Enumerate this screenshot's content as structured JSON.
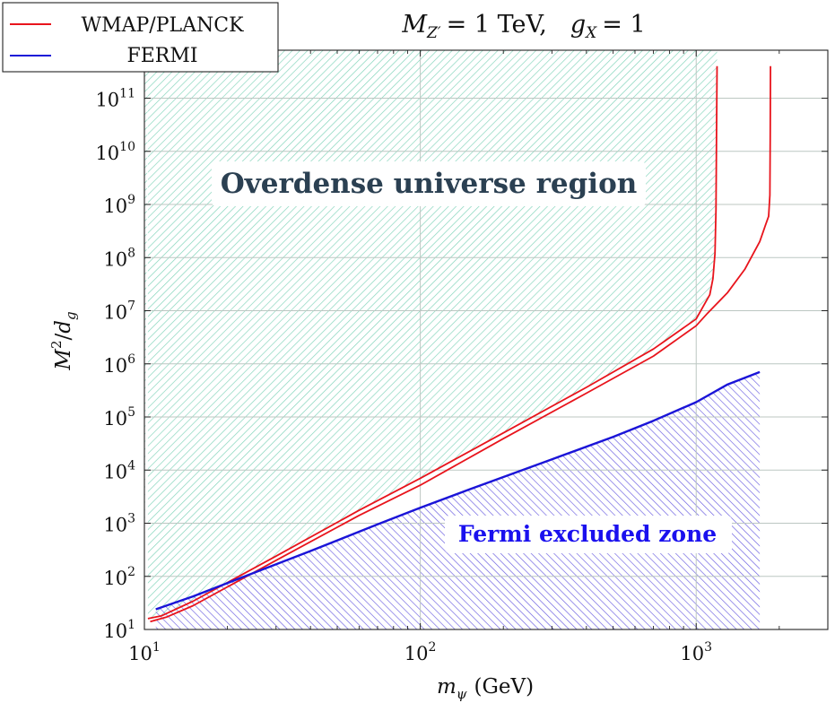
{
  "colors": {
    "wmap": "#e8141c",
    "fermi": "#1a14d8",
    "overdense_hatch": "#7fd3b9",
    "fermi_hatch": "#6a5ee0",
    "grid": "#bcc7c2",
    "overdense_text": "#2b4052",
    "fermi_text": "#1a10ee"
  },
  "chart_data": {
    "type": "line",
    "title": "M_{Z'} = 1 TeV,   g_X = 1",
    "title_parts": {
      "mass_symbol": "M",
      "mass_subscript": "Z′",
      "mass_value": "= 1 TeV,",
      "coupling_symbol": "g",
      "coupling_subscript": "X",
      "coupling_value": "= 1"
    },
    "xlabel": "m_ψ (GeV)",
    "xlabel_parts": {
      "symbol": "m",
      "subscript": "ψ",
      "unit": "(GeV)"
    },
    "ylabel": "M^2/d_g",
    "ylabel_parts": {
      "symbol": "M",
      "superscript": "2",
      "slash": "/",
      "denominator": "d",
      "denominator_subscript": "g"
    },
    "x_scale": "log",
    "y_scale": "log",
    "xlim": [
      10,
      3000
    ],
    "ylim": [
      10,
      800000000000
    ],
    "x_ticks": [
      {
        "value": 10,
        "base": "10",
        "exp": "1"
      },
      {
        "value": 100,
        "base": "10",
        "exp": "2"
      },
      {
        "value": 1000,
        "base": "10",
        "exp": "3"
      }
    ],
    "y_ticks": [
      {
        "value": 10,
        "base": "10",
        "exp": "1"
      },
      {
        "value": 100,
        "base": "10",
        "exp": "2"
      },
      {
        "value": 1000,
        "base": "10",
        "exp": "3"
      },
      {
        "value": 10000,
        "base": "10",
        "exp": "4"
      },
      {
        "value": 100000,
        "base": "10",
        "exp": "5"
      },
      {
        "value": 1000000,
        "base": "10",
        "exp": "6"
      },
      {
        "value": 10000000,
        "base": "10",
        "exp": "7"
      },
      {
        "value": 100000000,
        "base": "10",
        "exp": "8"
      },
      {
        "value": 1000000000,
        "base": "10",
        "exp": "9"
      },
      {
        "value": 10000000000,
        "base": "10",
        "exp": "10"
      },
      {
        "value": 100000000000,
        "base": "10",
        "exp": "11"
      }
    ],
    "grid": true,
    "legend": {
      "placement": "top-left",
      "entries": [
        {
          "label": "WMAP/PLANCK",
          "series": "wmap"
        },
        {
          "label": "FERMI",
          "series": "fermi"
        }
      ]
    },
    "series": [
      {
        "name": "WMAP/PLANCK (upper)",
        "key": "wmap",
        "points": [
          [
            10.3,
            16
          ],
          [
            11.5,
            18
          ],
          [
            15,
            34
          ],
          [
            30,
            240
          ],
          [
            60,
            1750
          ],
          [
            100,
            7000
          ],
          [
            200,
            50000
          ],
          [
            400,
            360000
          ],
          [
            700,
            1900000
          ],
          [
            1000,
            7000000
          ],
          [
            1060,
            12000000
          ],
          [
            1120,
            20000000
          ],
          [
            1150,
            40000000
          ],
          [
            1170,
            120000000
          ],
          [
            1180,
            800000000
          ],
          [
            1185,
            20000000000
          ],
          [
            1190,
            400000000000
          ]
        ]
      },
      {
        "name": "WMAP/PLANCK (lower)",
        "key": "wmap",
        "points": [
          [
            10.5,
            14
          ],
          [
            12,
            17
          ],
          [
            15,
            28
          ],
          [
            30,
            200
          ],
          [
            60,
            1400
          ],
          [
            100,
            5200
          ],
          [
            200,
            39000
          ],
          [
            400,
            280000
          ],
          [
            700,
            1400000
          ],
          [
            1000,
            5200000
          ],
          [
            1100,
            9000000
          ],
          [
            1300,
            22000000
          ],
          [
            1500,
            60000000
          ],
          [
            1700,
            200000000
          ],
          [
            1780,
            400000000
          ],
          [
            1830,
            600000000
          ],
          [
            1850,
            1500000000
          ],
          [
            1855,
            20000000000
          ],
          [
            1860,
            400000000000
          ]
        ]
      },
      {
        "name": "FERMI",
        "key": "fermi",
        "points": [
          [
            11,
            24
          ],
          [
            15,
            42
          ],
          [
            20,
            75
          ],
          [
            40,
            300
          ],
          [
            70,
            950
          ],
          [
            100,
            1950
          ],
          [
            150,
            4300
          ],
          [
            300,
            16000
          ],
          [
            500,
            42000
          ],
          [
            700,
            85000
          ],
          [
            1000,
            190000
          ],
          [
            1300,
            410000
          ],
          [
            1700,
            700000
          ]
        ]
      }
    ],
    "regions": [
      {
        "name": "overdense",
        "label": "Overdense universe region",
        "anchor_data": [
          95,
          3000000000
        ]
      },
      {
        "name": "fermi_excluded",
        "label": "Fermi excluded zone",
        "anchor_data": [
          370,
          500
        ]
      }
    ]
  }
}
